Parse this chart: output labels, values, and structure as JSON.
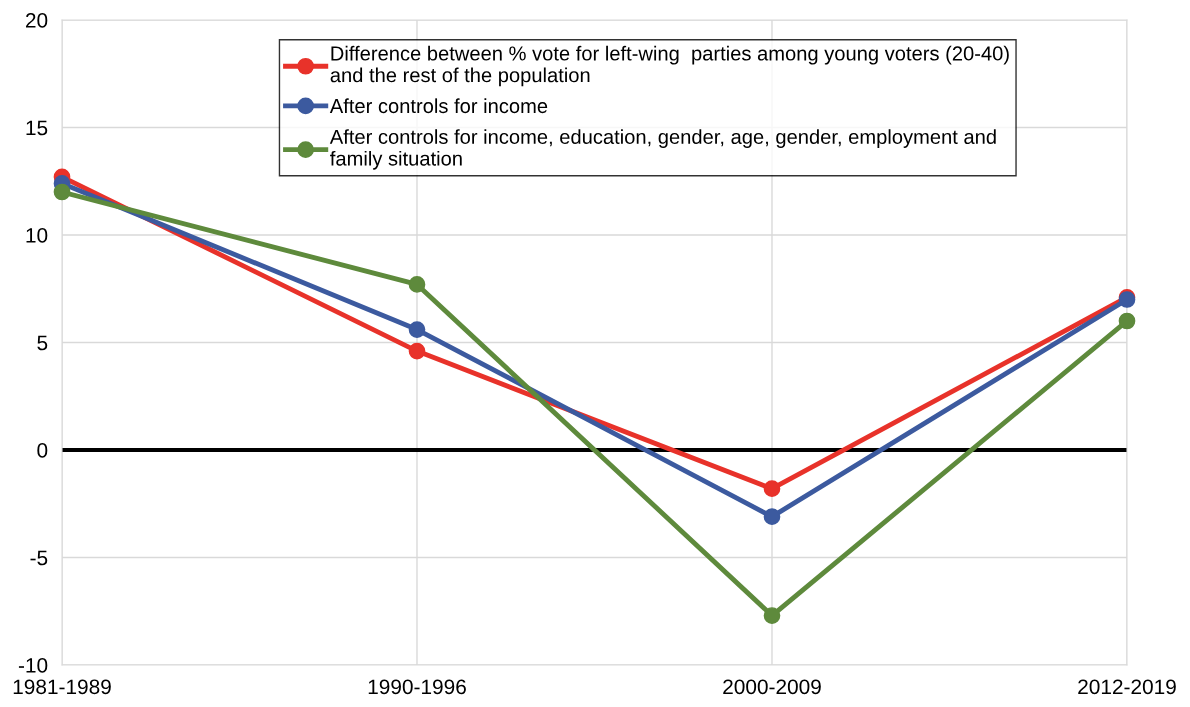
{
  "chart_data": {
    "type": "line",
    "categories": [
      "1981-1989",
      "1990-1996",
      "2000-2009",
      "2012-2019"
    ],
    "series": [
      {
        "name": "Difference between % vote for left-wing  parties among young voters (20-40)\nand the rest of the population",
        "color": "#e8322a",
        "values": [
          12.7,
          4.6,
          -1.8,
          7.1
        ]
      },
      {
        "name": "After controls for income",
        "color": "#3c5a9f",
        "values": [
          12.4,
          5.6,
          -3.1,
          7.0
        ]
      },
      {
        "name": "After controls for income, education, gender, age, gender, employment and\nfamily situation",
        "color": "#5e8a3c",
        "values": [
          12.0,
          7.7,
          -7.7,
          6.0
        ]
      }
    ],
    "ylim": [
      -10,
      20
    ],
    "yticks": [
      -10,
      -5,
      0,
      5,
      10,
      15,
      20
    ],
    "ref_lines": [
      {
        "axis": "y",
        "value": 0,
        "color": "#000000"
      }
    ],
    "grid": true,
    "legend": "top",
    "marker": "circle",
    "line_style": "solid"
  }
}
